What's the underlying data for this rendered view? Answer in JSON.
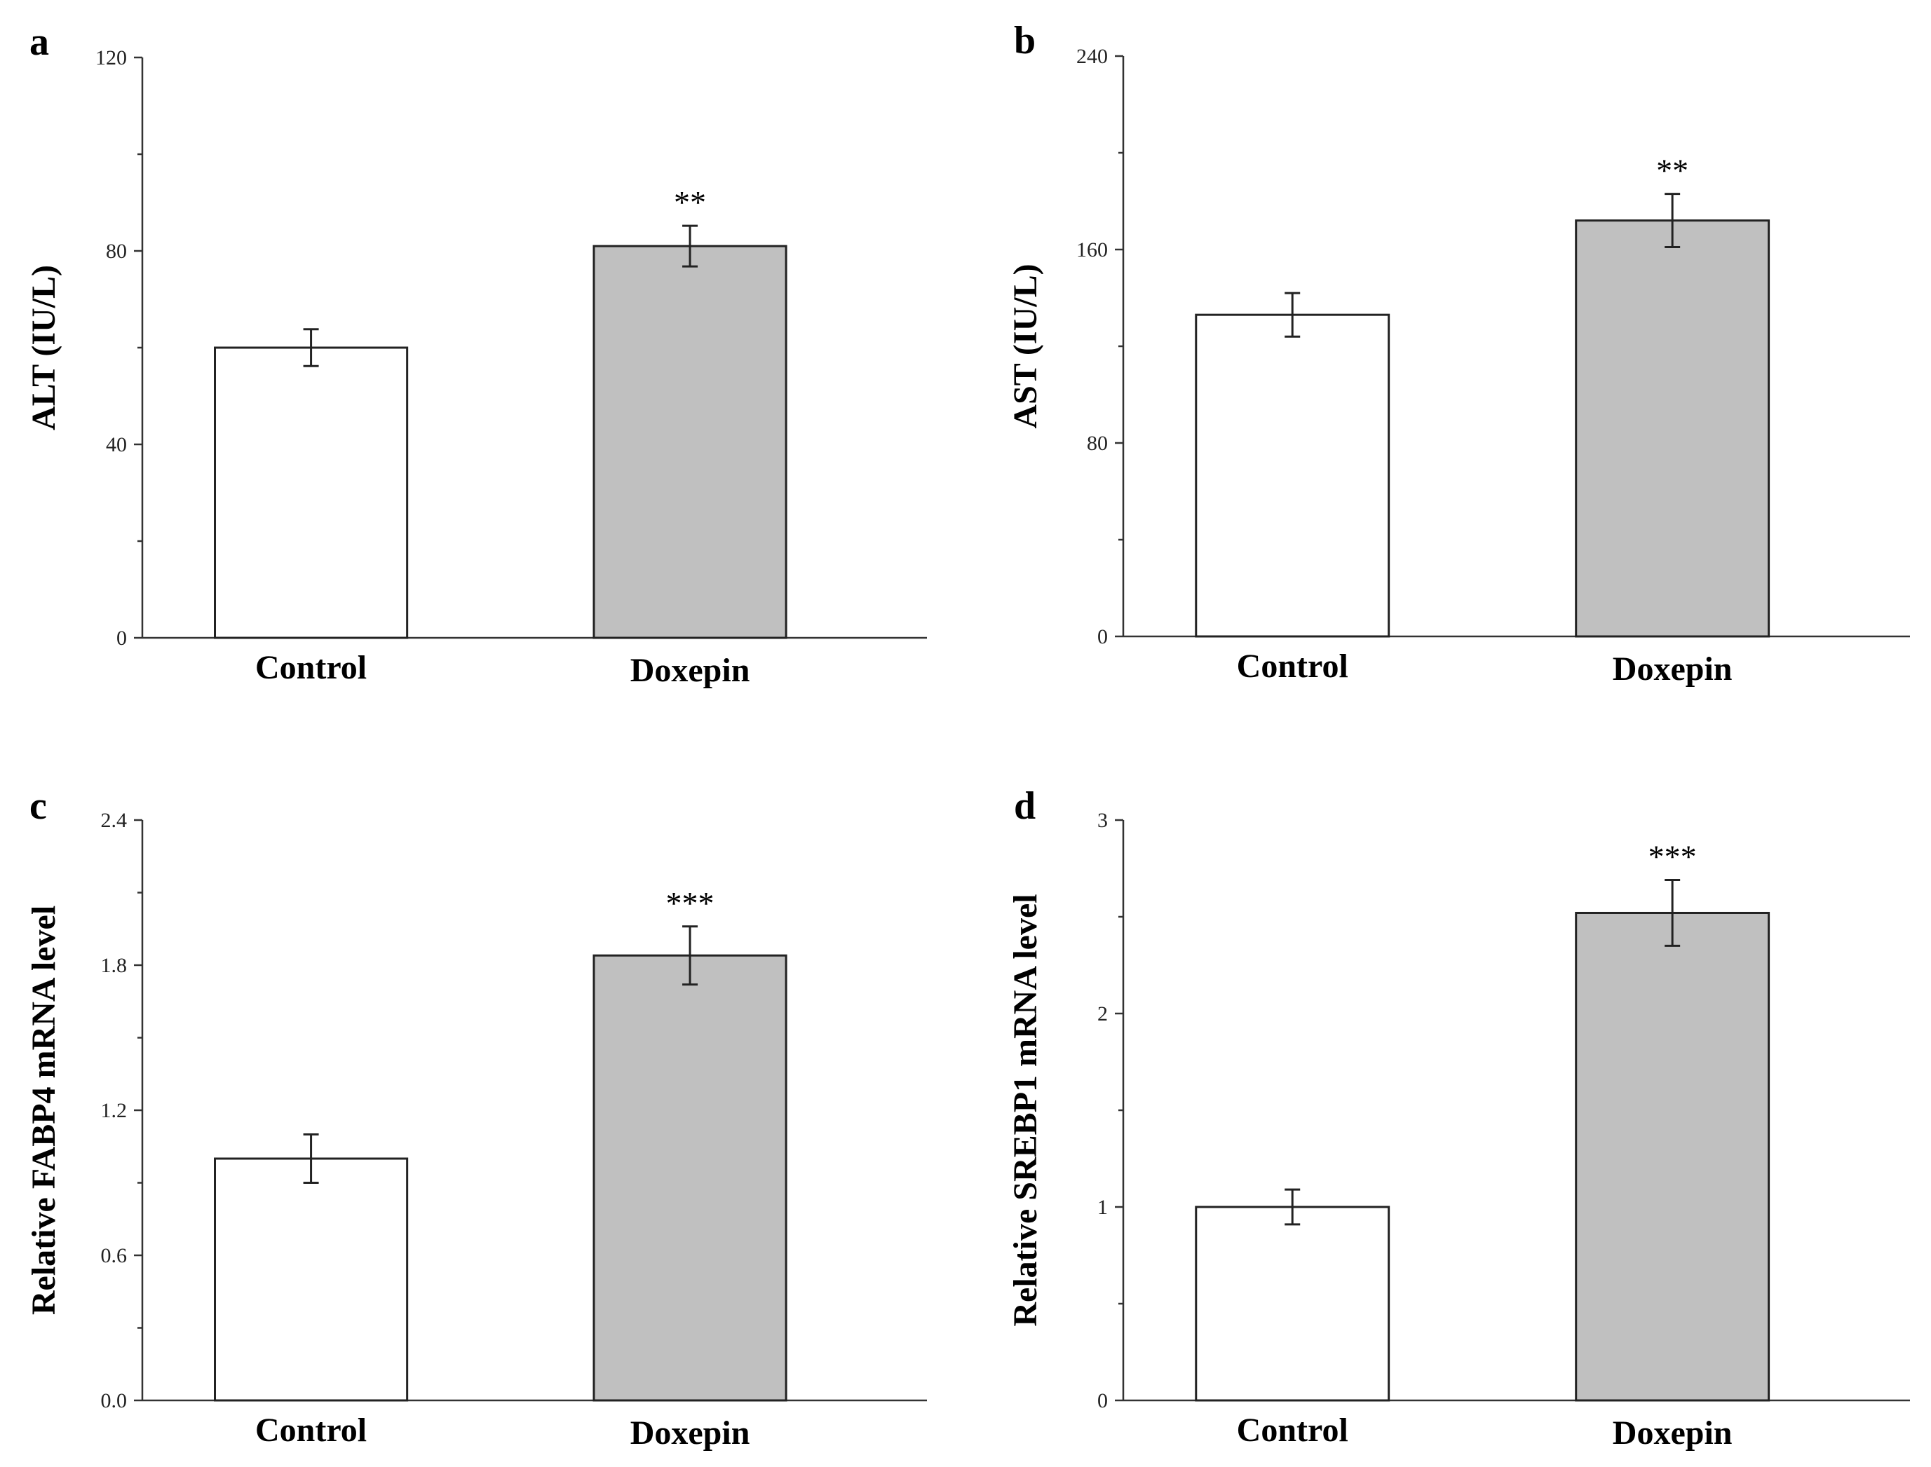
{
  "figure": {
    "colors": {
      "control_bar": "#ffffff",
      "doxepin_bar": "#c0c0c0",
      "stroke": "#222222"
    }
  },
  "chart_data": [
    {
      "type": "bar",
      "panel": "a",
      "categories": [
        "Control",
        "Doxepin"
      ],
      "values": [
        60,
        81
      ],
      "errors": [
        3.8,
        4.2
      ],
      "significance": [
        "",
        "**"
      ],
      "ylabel": "ALT (IU/L)",
      "xlabel": "",
      "ylim": [
        0,
        120
      ],
      "yticks": [
        0,
        40,
        80,
        120
      ],
      "ytick_labels": [
        "0",
        "40",
        "80",
        "120"
      ]
    },
    {
      "type": "bar",
      "panel": "b",
      "categories": [
        "Control",
        "Doxepin"
      ],
      "values": [
        133,
        172
      ],
      "errors": [
        9,
        11
      ],
      "significance": [
        "",
        "**"
      ],
      "ylabel": "AST (IU/L)",
      "xlabel": "",
      "ylim": [
        0,
        240
      ],
      "yticks": [
        0,
        80,
        160,
        240
      ],
      "ytick_labels": [
        "0",
        "80",
        "160",
        "240"
      ]
    },
    {
      "type": "bar",
      "panel": "c",
      "categories": [
        "Control",
        "Doxepin"
      ],
      "values": [
        1.0,
        1.84
      ],
      "errors": [
        0.1,
        0.12
      ],
      "significance": [
        "",
        "***"
      ],
      "ylabel": "Relative FABP4 mRNA level",
      "xlabel": "",
      "ylim": [
        0,
        2.4
      ],
      "yticks": [
        0,
        0.6,
        1.2,
        1.8,
        2.4
      ],
      "ytick_labels": [
        "0.0",
        "0.6",
        "1.2",
        "1.8",
        "2.4"
      ]
    },
    {
      "type": "bar",
      "panel": "d",
      "categories": [
        "Control",
        "Doxepin"
      ],
      "values": [
        1.0,
        2.52
      ],
      "errors": [
        0.09,
        0.17
      ],
      "significance": [
        "",
        "***"
      ],
      "ylabel": "Relative SREBP1 mRNA level",
      "xlabel": "",
      "ylim": [
        0,
        3
      ],
      "yticks": [
        0,
        1,
        2,
        3
      ],
      "ytick_labels": [
        "0",
        "1",
        "2",
        "3"
      ]
    }
  ]
}
